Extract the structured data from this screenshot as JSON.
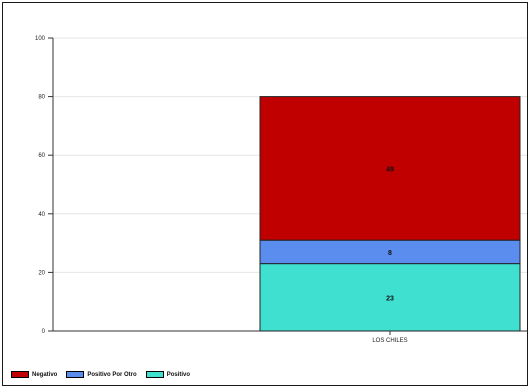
{
  "chart_data": {
    "type": "bar",
    "stacked": true,
    "categories": [
      "LOS CHILES"
    ],
    "series": [
      {
        "name": "Positivo",
        "values": [
          23
        ],
        "color": "#40E0D0"
      },
      {
        "name": "Positivo Por Otro",
        "values": [
          8
        ],
        "color": "#5B8DEF"
      },
      {
        "name": "Negativo",
        "values": [
          49
        ],
        "color": "#C00000"
      }
    ],
    "ylim": [
      0,
      100
    ],
    "yticks": [
      0,
      20,
      40,
      60,
      80,
      100
    ],
    "grid": true,
    "legend_placement": "bottom-left",
    "legend_order": [
      "Negativo",
      "Positivo Por Otro",
      "Positivo"
    ]
  }
}
